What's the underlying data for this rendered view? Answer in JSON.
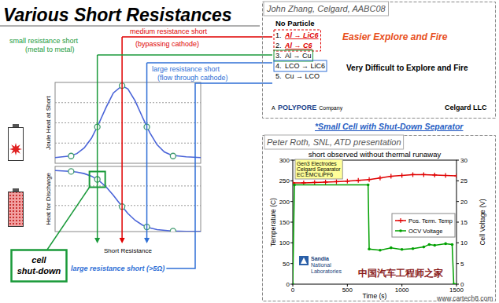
{
  "slide": {
    "title": "Various Short Resistances",
    "watermark": [
      "中国汽车工程师之家",
      "www.cartech8.com"
    ]
  },
  "annotations": {
    "small_short": [
      "small resistance short",
      "(metal to metal)"
    ],
    "medium_short": [
      "medium resistance short",
      "(bypassing cathode)"
    ],
    "large_short": [
      "large resistance short",
      "(flow through cathode)"
    ],
    "large_short_5ohm": "large resistance short (>5Ω)",
    "cell_shutdown": [
      "cell",
      "shut-down"
    ],
    "small_cell_note": "*Small Cell with Shut-Down Separator"
  },
  "zhang_panel": {
    "header": "John Zhang, Celgard, AABC08",
    "heading": "No Particle",
    "items": [
      {
        "number": "1.",
        "text": "Al → LiC6",
        "color": "#e00000"
      },
      {
        "number": "2.",
        "text": "Al → C6",
        "color": "#e00000"
      },
      {
        "number": "3.",
        "text": "Al → Cu"
      },
      {
        "number": "4.",
        "text": "LCO → LiC6"
      },
      {
        "number": "5.",
        "text": "Cu → LCO"
      }
    ],
    "easy_note": "Easier Explore and Fire",
    "hard_note": "Very Difficult to Explore and Fire",
    "company": [
      "A",
      "POLYPORE",
      "Company"
    ],
    "brand": "Celgard LLC"
  },
  "roth_panel": {
    "header": "Peter Roth, SNL, ATD presentation",
    "inset": [
      "Gen3 Electrodes",
      "Celgard Separator",
      "EC:EMC\\LiPF6"
    ],
    "logo": [
      "Sandia",
      "National",
      "Laboratories"
    ]
  },
  "chart_data": [
    {
      "type": "line",
      "y_label": "Joule Heat at Short",
      "xlim": [
        0,
        10
      ],
      "ylim": [
        0,
        10
      ],
      "yticks": [
        2.5,
        5,
        7.5
      ],
      "grid": true,
      "tick_labels": false,
      "series": [
        {
          "color": "#4a64d8",
          "marker": "none",
          "line_style": "solid",
          "x": [
            0,
            1,
            1.5,
            2,
            2.5,
            3,
            3.5,
            4,
            4.6,
            5,
            5.5,
            6,
            6.5,
            7,
            7.5,
            8,
            9,
            10
          ],
          "values": [
            0.7,
            0.9,
            1.2,
            1.9,
            3.1,
            4.9,
            6.9,
            8.7,
            9.6,
            9.2,
            7.7,
            5.7,
            3.8,
            2.3,
            1.4,
            1.0,
            0.8,
            0.7
          ]
        },
        {
          "type": "scatter",
          "color": "#3f9a6e",
          "marker": "circle",
          "x": [
            1.1,
            2.9,
            4.6,
            6.3,
            8.1
          ],
          "values": [
            0.9,
            4.5,
            9.6,
            4.5,
            0.9
          ]
        }
      ]
    },
    {
      "type": "line",
      "y_label": "Heat for Discharge",
      "x_label": "Short Resistance",
      "xlim": [
        0,
        10
      ],
      "ylim": [
        0,
        10
      ],
      "yticks": [
        4,
        7
      ],
      "grid": true,
      "tick_labels": false,
      "series": [
        {
          "color": "#4a64d8",
          "marker": "none",
          "line_style": "solid",
          "x": [
            0,
            1,
            1.5,
            2,
            2.5,
            3,
            3.5,
            4,
            4.5,
            5,
            5.5,
            6,
            6.5,
            7,
            8,
            9,
            10
          ],
          "values": [
            9.36,
            9.25,
            9.12,
            8.9,
            8.51,
            7.85,
            6.87,
            5.57,
            4.12,
            2.77,
            1.72,
            1.0,
            0.57,
            0.31,
            0.09,
            0.03,
            0.01
          ]
        },
        {
          "type": "scatter",
          "color": "#3f9a6e",
          "marker": "circle",
          "x": [
            1.1,
            2.9,
            4.6,
            6.3,
            8.1
          ],
          "values": [
            9.23,
            8.01,
            3.83,
            0.71,
            0.08
          ]
        }
      ]
    },
    {
      "type": "line",
      "title": "short observed without thermal runaway",
      "x_label": "Time (s)",
      "y_label": "Temperature (C)",
      "y2_label": "Cell Voltage (V)",
      "xlim": [
        0,
        1500
      ],
      "xticks": [
        0,
        500,
        1000,
        1500
      ],
      "ylim": [
        0,
        300
      ],
      "yticks": [
        0,
        50,
        100,
        150,
        200,
        250,
        300
      ],
      "y2lim": [
        0,
        30
      ],
      "y2ticks": [
        0,
        5,
        10,
        15,
        20,
        25,
        30
      ],
      "grid": false,
      "legend": "center right",
      "series": [
        {
          "name": "Pos. Term. Temp",
          "color": "#e00000",
          "marker": "plus",
          "x": [
            0,
            100,
            200,
            300,
            400,
            500,
            600,
            700,
            800,
            900,
            1000,
            1100,
            1200,
            1300,
            1400,
            1500
          ],
          "values": [
            245,
            245,
            246,
            247,
            248,
            249,
            251,
            253,
            257,
            261,
            263,
            265,
            265,
            264,
            263,
            262
          ]
        },
        {
          "name": "OCV Voltage",
          "color": "#00a000",
          "marker": "circle",
          "axis": "y2",
          "x": [
            0,
            15,
            690,
            700,
            800,
            900,
            1000,
            1100,
            1200,
            1250,
            1300,
            1400,
            1460,
            1475,
            1500
          ],
          "values": [
            0,
            24,
            24,
            8.5,
            8.2,
            8.8,
            8.4,
            8.6,
            9,
            9.6,
            9.4,
            9.8,
            9.6,
            0,
            0
          ]
        }
      ]
    }
  ]
}
